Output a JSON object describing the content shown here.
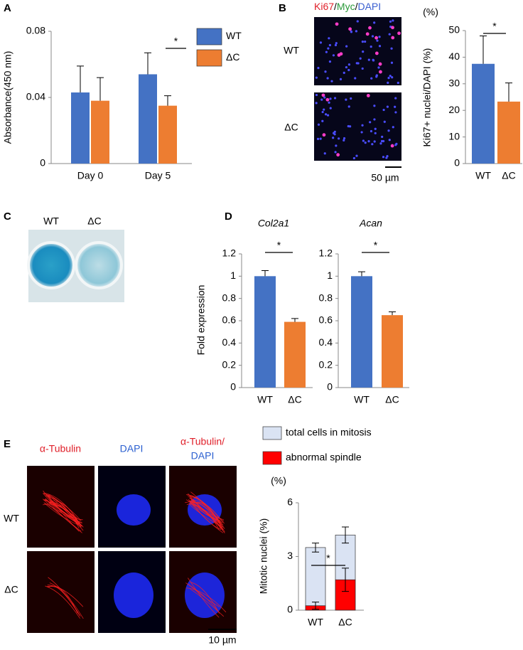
{
  "figure": {
    "panel_labels": [
      "A",
      "B",
      "C",
      "D",
      "E"
    ],
    "b_stain": [
      "Ki67",
      "/",
      "Myc",
      "/",
      "DAPI"
    ],
    "b_rows": [
      "WT",
      "ΔC"
    ],
    "b_scale": "50 µm",
    "c_cols": [
      "WT",
      "ΔC"
    ],
    "e_cols": [
      "α-Tubulin",
      "DAPI",
      "α-Tubulin/",
      "DAPI"
    ],
    "e_rows": [
      "WT",
      "ΔC"
    ],
    "e_scale": "10 µm"
  },
  "chart_data": [
    {
      "type": "bar",
      "ylabel": "Absorbance(450 nm)",
      "categories": [
        "Day 0",
        "Day 5"
      ],
      "series": [
        {
          "name": "WT",
          "color": "#4472c4",
          "values": [
            0.043,
            0.054
          ],
          "errors": [
            0.016,
            0.013
          ]
        },
        {
          "name": "ΔC",
          "color": "#ed7d31",
          "values": [
            0.038,
            0.035
          ],
          "errors": [
            0.014,
            0.006
          ]
        }
      ],
      "ylim": [
        0,
        0.08
      ],
      "yticks": [
        0,
        0.04,
        0.08
      ],
      "error_bars": "upper",
      "legend": "right",
      "annotations": [
        "*"
      ]
    },
    {
      "type": "bar",
      "unit_label": "(%)",
      "ylabel": "Ki67+ nuclei/DAPI (%)",
      "categories": [
        "WT",
        "ΔC"
      ],
      "values": [
        37.5,
        23.3
      ],
      "errors": [
        10.5,
        7
      ],
      "colors": [
        "#4472c4",
        "#ed7d31"
      ],
      "ylim": [
        0,
        50
      ],
      "yticks": [
        0,
        10,
        20,
        30,
        40,
        50
      ],
      "error_bars": "upper",
      "annotations": [
        "*"
      ]
    },
    {
      "type": "bar",
      "title": "Col2a1",
      "ylabel": "Fold expression",
      "categories": [
        "WT",
        "ΔC"
      ],
      "values": [
        1,
        0.59
      ],
      "errors": [
        0.05,
        0.03
      ],
      "colors": [
        "#4472c4",
        "#ed7d31"
      ],
      "ylim": [
        0,
        1.2
      ],
      "yticks": [
        0,
        0.2,
        0.4,
        0.6,
        0.8,
        1,
        1.2
      ],
      "error_bars": "upper",
      "annotations": [
        "*"
      ]
    },
    {
      "type": "bar",
      "title": "Acan",
      "categories": [
        "WT",
        "ΔC"
      ],
      "values": [
        1,
        0.65
      ],
      "errors": [
        0.04,
        0.03
      ],
      "colors": [
        "#4472c4",
        "#ed7d31"
      ],
      "ylim": [
        0,
        1.2
      ],
      "yticks": [
        0,
        0.2,
        0.4,
        0.6,
        0.8,
        1,
        1.2
      ],
      "error_bars": "upper",
      "annotations": [
        "*"
      ]
    },
    {
      "type": "bar",
      "overlap": true,
      "unit_label": "(%)",
      "ylabel": "Mitotic nuclei (%)",
      "categories": [
        "WT",
        "ΔC"
      ],
      "series": [
        {
          "name": "total cells in mitosis",
          "color": "#dae3f3",
          "values": [
            3.5,
            4.2
          ],
          "errors": [
            0.25,
            0.45
          ]
        },
        {
          "name": "abnormal spindle",
          "color": "#ff0000",
          "values": [
            0.25,
            1.7
          ],
          "errors": [
            0.2,
            0.65
          ]
        }
      ],
      "ylim": [
        0,
        6
      ],
      "yticks": [
        0,
        3,
        6
      ],
      "error_bars": "both",
      "legend": "top",
      "annotations": [
        "*"
      ]
    }
  ]
}
